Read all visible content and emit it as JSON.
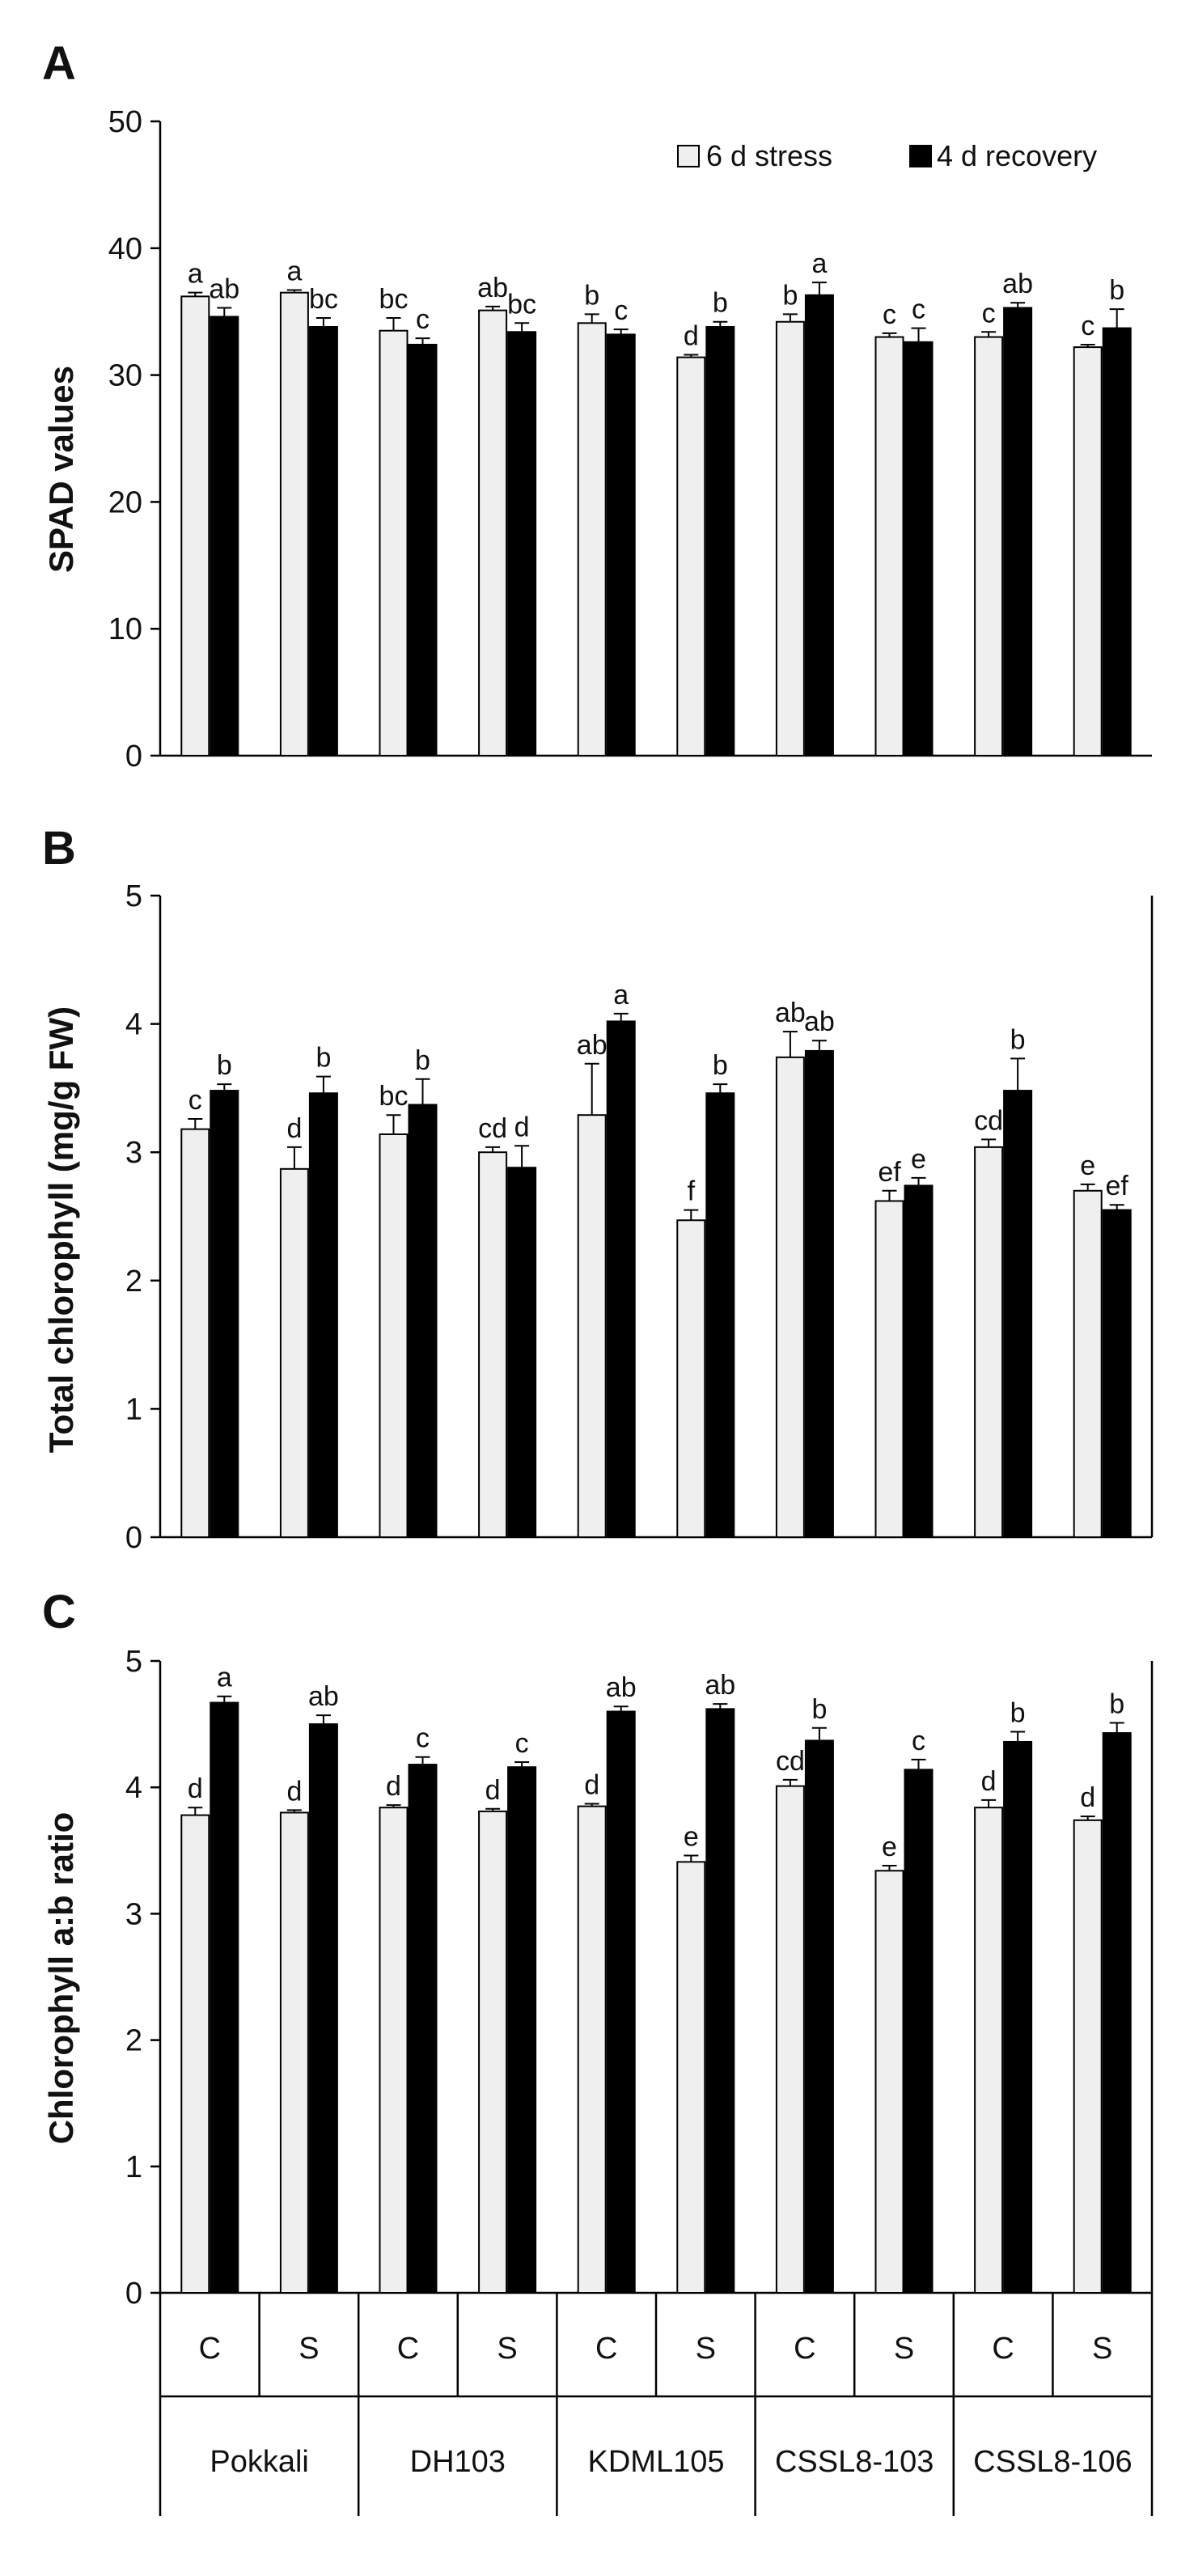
{
  "chart_data": [
    {
      "panel": "A",
      "type": "bar",
      "ylabel": "SPAD values",
      "ylim": [
        0,
        50
      ],
      "yticks": [
        0,
        10,
        20,
        30,
        40,
        50
      ],
      "legend": [
        "6 d stress",
        "4 d recovery"
      ],
      "legend_position": "top-right",
      "categories": [
        "Pokkali C",
        "Pokkali S",
        "DH103 C",
        "DH103 S",
        "KDML105 C",
        "KDML105 S",
        "CSSL8-103 C",
        "CSSL8-103 S",
        "CSSL8-106 C",
        "CSSL8-106 S"
      ],
      "series": [
        {
          "name": "6 d stress",
          "values": [
            36.2,
            36.5,
            33.5,
            35.1,
            34.1,
            31.4,
            34.2,
            33.0,
            33.0,
            32.2
          ],
          "errors": [
            0.3,
            0.2,
            1.0,
            0.3,
            0.7,
            0.2,
            0.6,
            0.3,
            0.4,
            0.2
          ],
          "letters": [
            "a",
            "a",
            "bc",
            "ab",
            "b",
            "d",
            "b",
            "c",
            "c",
            "c"
          ]
        },
        {
          "name": "4 d recovery",
          "values": [
            34.6,
            33.8,
            32.4,
            33.4,
            33.2,
            33.8,
            36.3,
            32.6,
            35.3,
            33.7
          ],
          "errors": [
            0.7,
            0.7,
            0.5,
            0.7,
            0.4,
            0.4,
            1.0,
            1.1,
            0.4,
            1.5
          ],
          "letters": [
            "ab",
            "bc",
            "c",
            "bc",
            "c",
            "b",
            "a",
            "c",
            "ab",
            "b"
          ]
        }
      ]
    },
    {
      "panel": "B",
      "type": "bar",
      "ylabel": "Total chlorophyll (mg/g FW)",
      "ylim": [
        0,
        5
      ],
      "yticks": [
        0,
        1,
        2,
        3,
        4,
        5
      ],
      "categories": [
        "Pokkali C",
        "Pokkali S",
        "DH103 C",
        "DH103 S",
        "KDML105 C",
        "KDML105 S",
        "CSSL8-103 C",
        "CSSL8-103 S",
        "CSSL8-106 C",
        "CSSL8-106 S"
      ],
      "series": [
        {
          "name": "6 d stress",
          "values": [
            3.18,
            2.87,
            3.14,
            3.0,
            3.29,
            2.47,
            3.74,
            2.62,
            3.04,
            2.7
          ],
          "errors": [
            0.08,
            0.17,
            0.15,
            0.04,
            0.4,
            0.08,
            0.2,
            0.08,
            0.06,
            0.05
          ],
          "letters": [
            "c",
            "d",
            "bc",
            "cd",
            "ab",
            "f",
            "ab",
            "ef",
            "cd",
            "e"
          ]
        },
        {
          "name": "4 d recovery",
          "values": [
            3.48,
            3.46,
            3.37,
            2.88,
            4.02,
            3.46,
            3.79,
            2.74,
            3.48,
            2.55
          ],
          "errors": [
            0.05,
            0.13,
            0.2,
            0.17,
            0.06,
            0.07,
            0.08,
            0.06,
            0.25,
            0.04
          ],
          "letters": [
            "b",
            "b",
            "b",
            "d",
            "a",
            "b",
            "ab",
            "e",
            "b",
            "ef"
          ]
        }
      ]
    },
    {
      "panel": "C",
      "type": "bar",
      "ylabel": "Chlorophyll a:b ratio",
      "ylim": [
        0,
        5
      ],
      "yticks": [
        0,
        1,
        2,
        3,
        4,
        5
      ],
      "categories": [
        "Pokkali C",
        "Pokkali S",
        "DH103 C",
        "DH103 S",
        "KDML105 C",
        "KDML105 S",
        "CSSL8-103 C",
        "CSSL8-103 S",
        "CSSL8-106 C",
        "CSSL8-106 S"
      ],
      "treatments": [
        "C",
        "S",
        "C",
        "S",
        "C",
        "S",
        "C",
        "S",
        "C",
        "S"
      ],
      "groups": [
        "Pokkali",
        "DH103",
        "KDML105",
        "CSSL8-103",
        "CSSL8-106"
      ],
      "series": [
        {
          "name": "6 d stress",
          "values": [
            3.78,
            3.8,
            3.84,
            3.81,
            3.85,
            3.41,
            4.01,
            3.34,
            3.84,
            3.74
          ],
          "errors": [
            0.06,
            0.02,
            0.02,
            0.02,
            0.02,
            0.05,
            0.05,
            0.04,
            0.06,
            0.03
          ],
          "letters": [
            "d",
            "d",
            "d",
            "d",
            "d",
            "e",
            "cd",
            "e",
            "d",
            "d"
          ]
        },
        {
          "name": "4 d recovery",
          "values": [
            4.67,
            4.5,
            4.18,
            4.16,
            4.6,
            4.62,
            4.37,
            4.14,
            4.36,
            4.43
          ],
          "errors": [
            0.05,
            0.07,
            0.06,
            0.04,
            0.04,
            0.04,
            0.1,
            0.08,
            0.08,
            0.08
          ],
          "letters": [
            "a",
            "ab",
            "c",
            "c",
            "ab",
            "ab",
            "b",
            "c",
            "b",
            "b"
          ]
        }
      ]
    }
  ],
  "colors": {
    "stress": "#efefef",
    "recovery": "#000000",
    "axis": "#000000"
  }
}
